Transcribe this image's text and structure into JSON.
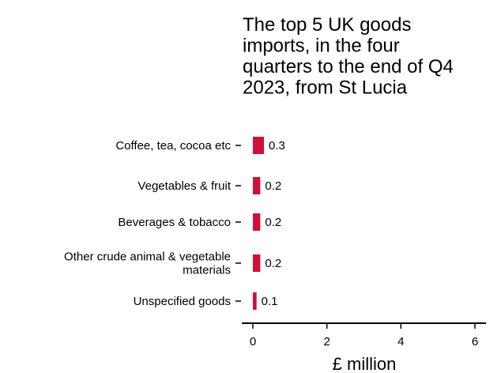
{
  "chart_data": {
    "type": "bar",
    "orientation": "horizontal",
    "title_lines": [
      "The top 5 UK goods",
      "imports, in the four",
      "quarters to the end of Q4",
      "2023, from St Lucia"
    ],
    "categories": [
      [
        "Coffee, tea, cocoa etc"
      ],
      [
        "Vegetables & fruit"
      ],
      [
        "Beverages & tobacco"
      ],
      [
        "Other crude animal & vegetable",
        "materials"
      ],
      [
        "Unspecified goods"
      ]
    ],
    "values": [
      0.3,
      0.2,
      0.2,
      0.2,
      0.1
    ],
    "value_labels": [
      "0.3",
      "0.2",
      "0.2",
      "0.2",
      "0.1"
    ],
    "xlabel": "£ million",
    "xlim": [
      0,
      6
    ],
    "xticks": [
      0,
      2,
      4,
      6
    ],
    "xtick_labels": [
      "0",
      "2",
      "4",
      "6"
    ],
    "bar_color": "#d0103a",
    "grid": false,
    "legend": "none"
  }
}
